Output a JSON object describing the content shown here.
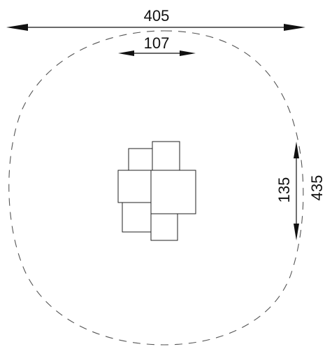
{
  "dimensions": {
    "overall_width": "405",
    "center_width": "107",
    "center_height": "135",
    "overall_height": "435"
  },
  "colors": {
    "line": "#111111",
    "boundary_dash": "#555555"
  }
}
